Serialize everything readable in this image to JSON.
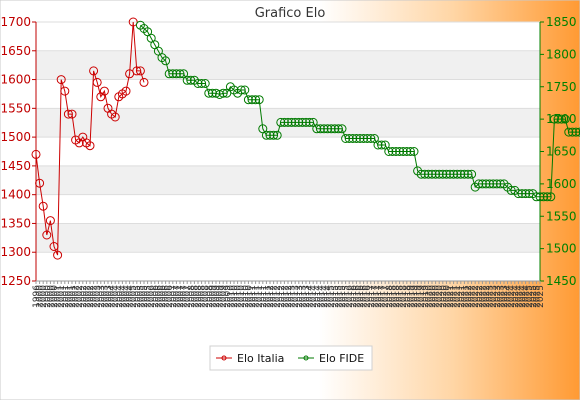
{
  "chart_data": {
    "type": "line",
    "title": "Grafico Elo",
    "y_left": {
      "min": 1250,
      "max": 1700,
      "step": 50
    },
    "y_right": {
      "min": 1450,
      "max": 1850,
      "step": 50
    },
    "grid": true,
    "legend_position": "bottom",
    "x_tick_labels": [
      "1996",
      "2000",
      "2000",
      "2000",
      "2000",
      "2000",
      "2001",
      "2001",
      "2001",
      "2001",
      "2001",
      "2002",
      "2002",
      "2002",
      "2002",
      "2002",
      "2002",
      "2003",
      "2003",
      "2003",
      "2003",
      "2004",
      "2004",
      "2004",
      "2004",
      "2004",
      "2004",
      "2005",
      "2005",
      "2005",
      "2005",
      "2005",
      "2006",
      "2006",
      "2006",
      "2006",
      "2006",
      "2006",
      "2007",
      "2007",
      "2007",
      "2007",
      "2007",
      "2008",
      "2008",
      "2008",
      "2008",
      "2008",
      "2008",
      "2009",
      "2009",
      "2009",
      "2009",
      "2009",
      "2010",
      "2010",
      "2010",
      "2010",
      "2010",
      "2010",
      "2011",
      "2011",
      "2011",
      "2011",
      "2011",
      "2012",
      "2012",
      "2012",
      "2012",
      "2012",
      "2012",
      "2013",
      "2013",
      "2013",
      "2013",
      "2013",
      "2014",
      "2014",
      "2014",
      "2014",
      "2014",
      "2014",
      "2015",
      "2015",
      "2015",
      "2015",
      "2015",
      "2016",
      "2016",
      "2016",
      "2016",
      "2016",
      "2016",
      "2017",
      "2017",
      "2017",
      "2017",
      "2017",
      "2018",
      "2018",
      "2018",
      "2018",
      "2018",
      "2018",
      "2019",
      "2019",
      "2019",
      "2019",
      "2019",
      "2020",
      "2020",
      "2020",
      "2020",
      "2020",
      "2020",
      "2021",
      "2021",
      "2021",
      "2021",
      "2021",
      "2022",
      "2022",
      "2022",
      "2022",
      "2022",
      "2022",
      "2023",
      "2023",
      "2023",
      "2023",
      "2023",
      "2024",
      "2024",
      "2024",
      "2024",
      "2024",
      "2024",
      "2025",
      "2025",
      "2025",
      "2025"
    ],
    "series": [
      {
        "name": "Elo Italia",
        "axis": "left",
        "color": "#cc0000",
        "start_index": 0,
        "values": [
          1470,
          1420,
          1380,
          1330,
          1355,
          1310,
          1295,
          1600,
          1580,
          1540,
          1540,
          1495,
          1490,
          1500,
          1490,
          1485,
          1615,
          1595,
          1570,
          1580,
          1550,
          1540,
          1535,
          1570,
          1575,
          1580,
          1610,
          1700,
          1615,
          1615,
          1595
        ]
      },
      {
        "name": "Elo FIDE",
        "axis": "right",
        "color": "#007a00",
        "start_index": 29,
        "values": [
          1845,
          1840,
          1835,
          1825,
          1815,
          1805,
          1795,
          1790,
          1770,
          1770,
          1770,
          1770,
          1770,
          1760,
          1760,
          1760,
          1755,
          1755,
          1755,
          1740,
          1740,
          1740,
          1738,
          1740,
          1740,
          1750,
          1745,
          1740,
          1745,
          1745,
          1730,
          1730,
          1730,
          1730,
          1685,
          1675,
          1675,
          1675,
          1675,
          1695,
          1695,
          1695,
          1695,
          1695,
          1695,
          1695,
          1695,
          1695,
          1695,
          1685,
          1685,
          1685,
          1685,
          1685,
          1685,
          1685,
          1685,
          1670,
          1670,
          1670,
          1670,
          1670,
          1670,
          1670,
          1670,
          1670,
          1660,
          1660,
          1660,
          1650,
          1650,
          1650,
          1650,
          1650,
          1650,
          1650,
          1650,
          1620,
          1615,
          1615,
          1615,
          1615,
          1615,
          1615,
          1615,
          1615,
          1615,
          1615,
          1615,
          1615,
          1615,
          1615,
          1615,
          1595,
          1600,
          1600,
          1600,
          1600,
          1600,
          1600,
          1600,
          1600,
          1595,
          1590,
          1590,
          1585,
          1585,
          1585,
          1585,
          1585,
          1580,
          1580,
          1580,
          1580,
          1580,
          1700,
          1700,
          1700,
          1700,
          1680,
          1680,
          1680,
          1680,
          1680,
          1680,
          1680,
          1680,
          1680,
          1680,
          1680,
          1680,
          1680,
          1680
        ]
      }
    ]
  }
}
